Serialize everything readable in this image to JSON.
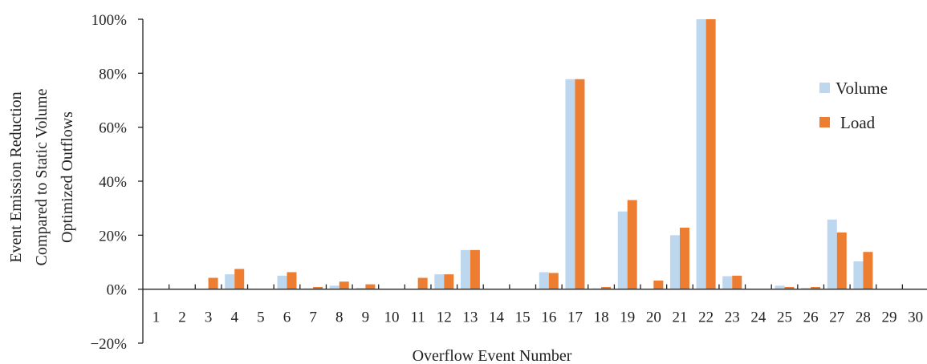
{
  "chart_data": {
    "type": "bar",
    "title": "",
    "xlabel": "Overflow Event Number",
    "ylabel_lines": [
      "Event Emission Reduction",
      "Compared to Static Volume",
      "Optimized Outflows"
    ],
    "ylim": [
      -20,
      100
    ],
    "yticks": [
      -20,
      0,
      20,
      40,
      60,
      80,
      100
    ],
    "ytick_labels": [
      "−20%",
      "0%",
      "20%",
      "40%",
      "60%",
      "80%",
      "100%"
    ],
    "grid": false,
    "legend_position": "right",
    "categories": [
      "1",
      "2",
      "3",
      "4",
      "5",
      "6",
      "7",
      "8",
      "9",
      "10",
      "11",
      "12",
      "13",
      "14",
      "15",
      "16",
      "17",
      "18",
      "19",
      "20",
      "21",
      "22",
      "23",
      "24",
      "25",
      "26",
      "27",
      "28",
      "29",
      "30"
    ],
    "series": [
      {
        "name": "Volume",
        "color": "#bdd7ee",
        "values": [
          0,
          0,
          0,
          5.5,
          0,
          5,
          0.3,
          1.3,
          0.5,
          0,
          0,
          5.5,
          14.5,
          0,
          0,
          6.3,
          77.8,
          0.3,
          28.8,
          0,
          20,
          100,
          4.8,
          0,
          1.3,
          0.5,
          25.8,
          10.3,
          0,
          0
        ]
      },
      {
        "name": "Load",
        "color": "#ed7d31",
        "values": [
          0,
          0,
          4.2,
          7.5,
          0,
          6.3,
          0.8,
          2.8,
          1.8,
          0,
          4.2,
          5.5,
          14.5,
          0,
          0,
          6.0,
          77.8,
          0.8,
          33,
          3.2,
          22.8,
          100,
          5,
          0,
          0.8,
          0.8,
          21,
          13.8,
          0,
          0
        ]
      }
    ]
  }
}
